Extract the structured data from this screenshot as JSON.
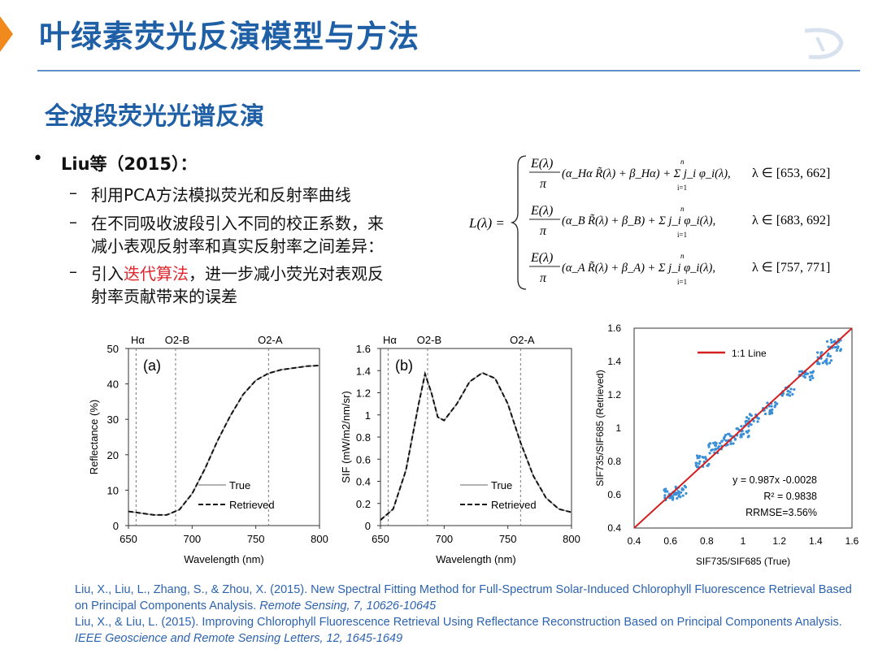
{
  "header": {
    "title": "叶绿素荧光反演模型与方法",
    "subtitle": "全波段荧光光谱反演"
  },
  "bullets": {
    "main": "Liu等（2015）：",
    "sub": [
      {
        "lines": [
          "利用PCA方法模拟荧光和反射率曲线"
        ]
      },
      {
        "lines": [
          "在不同吸收波段引入不同的校正系数，来",
          "减小表观反射率和真实反射率之间差异："
        ]
      },
      {
        "prefix": "引入",
        "highlight": "迭代算法",
        "suffix": "，进一步减小荧光对表观反",
        "line2": "射率贡献带来的误差"
      }
    ]
  },
  "equation": {
    "lhs": "L(λ) =",
    "frac_num": "E(λ)",
    "frac_den": "π",
    "rows": [
      {
        "term": "(α_Hα R̃(λ) + β_Hα) + Σ j_i φ_i(λ),",
        "range": "λ ∈ [653, 662]"
      },
      {
        "term": "(α_B R̃(λ) + β_B) + Σ j_i φ_i(λ),",
        "range": "λ ∈ [683, 692]"
      },
      {
        "term": "(α_A R̃(λ) + β_A) + Σ j_i φ_i(λ),",
        "range": "λ ∈ [757, 771]"
      }
    ],
    "sum_top": "n",
    "sum_bottom": "i=1"
  },
  "chart_data": [
    {
      "type": "line",
      "panel_label": "(a)",
      "xlabel": "Wavelength (nm)",
      "ylabel": "Reflectance (%)",
      "xlim": [
        650,
        800
      ],
      "ylim": [
        0,
        50
      ],
      "xticks": [
        650,
        700,
        750,
        800
      ],
      "yticks": [
        0,
        10,
        20,
        30,
        40,
        50
      ],
      "vlines": [
        {
          "x": 656,
          "label": "Hα"
        },
        {
          "x": 687,
          "label": "O2-B"
        },
        {
          "x": 760,
          "label": "O2-A"
        }
      ],
      "series": [
        {
          "name": "True",
          "x": [
            650,
            660,
            670,
            680,
            690,
            700,
            710,
            720,
            730,
            740,
            750,
            760,
            770,
            780,
            790,
            800
          ],
          "values": [
            4.0,
            3.5,
            3.0,
            3.0,
            4.5,
            9,
            16,
            24,
            31,
            37,
            41,
            43,
            44,
            44.5,
            45,
            45.2
          ]
        },
        {
          "name": "Retrieved",
          "x": [
            650,
            660,
            670,
            680,
            690,
            700,
            710,
            720,
            730,
            740,
            750,
            760,
            770,
            780,
            790,
            800
          ],
          "values": [
            4.0,
            3.5,
            3.0,
            3.0,
            4.5,
            9,
            16,
            24,
            31,
            37,
            41,
            43,
            44,
            44.5,
            45,
            45.2
          ]
        }
      ],
      "legend": "bottom-center"
    },
    {
      "type": "line",
      "panel_label": "(b)",
      "xlabel": "Wavelength (nm)",
      "ylabel": "SIF (mW/m2/nm/sr)",
      "xlim": [
        650,
        800
      ],
      "ylim": [
        0,
        1.6
      ],
      "xticks": [
        650,
        700,
        750,
        800
      ],
      "yticks": [
        0,
        0.2,
        0.4,
        0.6,
        0.8,
        1,
        1.2,
        1.4,
        1.6
      ],
      "vlines": [
        {
          "x": 656,
          "label": "Hα"
        },
        {
          "x": 687,
          "label": "O2-B"
        },
        {
          "x": 760,
          "label": "O2-A"
        }
      ],
      "series": [
        {
          "name": "True",
          "x": [
            650,
            660,
            670,
            680,
            685,
            690,
            695,
            700,
            710,
            720,
            730,
            740,
            750,
            760,
            770,
            780,
            790,
            800
          ],
          "values": [
            0.05,
            0.15,
            0.5,
            1.1,
            1.37,
            1.2,
            0.98,
            0.95,
            1.1,
            1.3,
            1.38,
            1.33,
            1.1,
            0.75,
            0.45,
            0.25,
            0.15,
            0.12
          ]
        },
        {
          "name": "Retrieved",
          "x": [
            650,
            660,
            670,
            680,
            685,
            690,
            695,
            700,
            710,
            720,
            730,
            740,
            750,
            760,
            770,
            780,
            790,
            800
          ],
          "values": [
            0.05,
            0.15,
            0.5,
            1.1,
            1.37,
            1.2,
            0.98,
            0.95,
            1.1,
            1.3,
            1.38,
            1.33,
            1.1,
            0.75,
            0.45,
            0.25,
            0.15,
            0.12
          ]
        }
      ],
      "legend": "bottom-right"
    },
    {
      "type": "scatter",
      "xlabel": "SIF735/SIF685 (True)",
      "ylabel": "SIF735/SIF685 (Retrieved)",
      "xlim": [
        0.4,
        1.6
      ],
      "ylim": [
        0.4,
        1.6
      ],
      "xticks": [
        0.4,
        0.6,
        0.8,
        1,
        1.2,
        1.4,
        1.6
      ],
      "yticks": [
        0.4,
        0.6,
        0.8,
        1,
        1.2,
        1.4,
        1.6
      ],
      "series": [
        {
          "name": "1:1 Line",
          "x": [
            0.4,
            1.6
          ],
          "values": [
            0.4,
            1.6
          ]
        }
      ],
      "cluster_centers": [
        [
          0.6,
          0.6
        ],
        [
          0.65,
          0.62
        ],
        [
          0.78,
          0.8
        ],
        [
          0.85,
          0.88
        ],
        [
          0.92,
          0.93
        ],
        [
          1.0,
          0.98
        ],
        [
          1.05,
          1.05
        ],
        [
          1.15,
          1.12
        ],
        [
          1.25,
          1.22
        ],
        [
          1.35,
          1.32
        ],
        [
          1.45,
          1.42
        ],
        [
          1.5,
          1.5
        ]
      ],
      "annotations": [
        "y = 0.987x -0.0028",
        "R² = 0.9838",
        "RRMSE=3.56%"
      ],
      "legend": "top-left"
    }
  ],
  "references": [
    {
      "text": "Liu, X., Liu, L., Zhang, S., & Zhou, X. (2015). New Spectral Fitting Method for Full-Spectrum Solar-Induced Chlorophyll Fluorescence Retrieval Based on Principal Components Analysis. ",
      "journal": "Remote Sensing, 7, 10626-10645"
    },
    {
      "text": "Liu, X., & Liu, L. (2015). Improving Chlorophyll Fluorescence Retrieval Using Reflectance Reconstruction Based on Principal Components Analysis. ",
      "journal": "IEEE Geoscience and Remote Sensing Letters, 12, 1645-1649"
    }
  ],
  "colors": {
    "title": "#1f5fa6",
    "accent_arrow": "#f08a1c",
    "highlight": "#e0242a",
    "scatter": "#3a8fd6",
    "oneone": "#d42020",
    "refs": "#2c63b0"
  }
}
